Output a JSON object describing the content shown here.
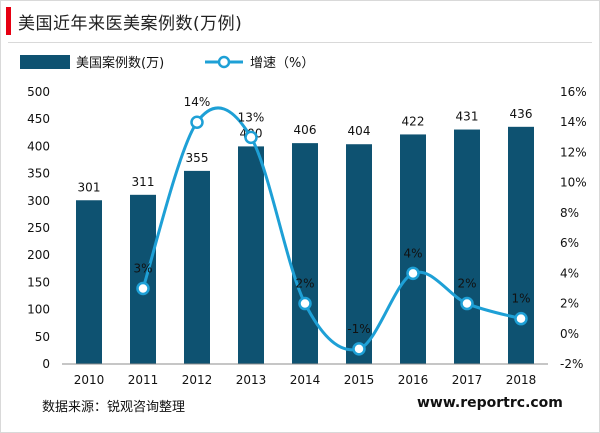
{
  "header": {
    "title": "美国近年来医美案例数(万例)"
  },
  "footer": {
    "source": "数据来源：锐观咨询整理",
    "website": "www.reportrc.com"
  },
  "colors": {
    "bar": "#0e5271",
    "line": "#1ea0d6",
    "accent": "#e60012"
  },
  "chart_data": {
    "type": "bar",
    "title": "美国近年来医美案例数(万例)",
    "categories": [
      "2010",
      "2011",
      "2012",
      "2013",
      "2014",
      "2015",
      "2016",
      "2017",
      "2018"
    ],
    "series": [
      {
        "name": "美国案例数(万)",
        "type": "bar",
        "axis": "left",
        "values": [
          301,
          311,
          355,
          400,
          406,
          404,
          422,
          431,
          436
        ],
        "labels": [
          "301",
          "311",
          "355",
          "400",
          "406",
          "404",
          "422",
          "431",
          "436"
        ]
      },
      {
        "name": "增速（%）",
        "type": "line",
        "axis": "right",
        "values": [
          null,
          3,
          14,
          13,
          2,
          -1,
          4,
          2,
          1
        ],
        "labels": [
          "",
          "3%",
          "14%",
          "13%",
          "2%",
          "-1%",
          "4%",
          "2%",
          "1%"
        ]
      }
    ],
    "y_left": {
      "min": 0,
      "max": 500,
      "ticks": [
        "0",
        "50",
        "100",
        "150",
        "200",
        "250",
        "300",
        "350",
        "400",
        "450",
        "500"
      ]
    },
    "y_right": {
      "min": -2,
      "max": 16,
      "ticks": [
        "-2%",
        "0%",
        "2%",
        "4%",
        "6%",
        "8%",
        "10%",
        "12%",
        "14%",
        "16%"
      ]
    },
    "legend": "top-left",
    "grid": false
  }
}
